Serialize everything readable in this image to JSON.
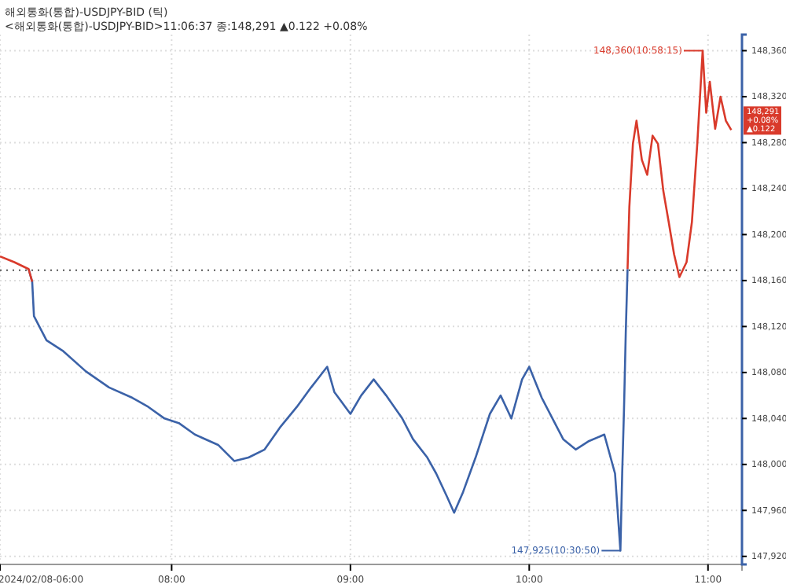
{
  "chart_data": {
    "type": "line",
    "title": "해외통화(통합)-USDJPY-BID (틱)",
    "subtitle": "<해외통화(통합)-USDJPY-BID>11:06:37 종:148,291 ▲0.122 +0.08%",
    "xlim": [
      7.04,
      11.19
    ],
    "xticks": [
      {
        "value": 7.04,
        "label": "2024/02/08-06:00"
      },
      {
        "value": 8,
        "label": "08:00"
      },
      {
        "value": 9,
        "label": "09:00"
      },
      {
        "value": 10,
        "label": "10:00"
      },
      {
        "value": 11,
        "label": "11:00"
      }
    ],
    "ylim": [
      147913,
      148374
    ],
    "yticks": [
      {
        "value": 147920,
        "label": "147,920"
      },
      {
        "value": 147960,
        "label": "147,960"
      },
      {
        "value": 148000,
        "label": "148,000"
      },
      {
        "value": 148040,
        "label": "148,040"
      },
      {
        "value": 148080,
        "label": "148,080"
      },
      {
        "value": 148120,
        "label": "148,120"
      },
      {
        "value": 148160,
        "label": "148,160"
      },
      {
        "value": 148200,
        "label": "148,200"
      },
      {
        "value": 148240,
        "label": "148,240"
      },
      {
        "value": 148280,
        "label": "148,280"
      },
      {
        "value": 148320,
        "label": "148,320"
      },
      {
        "value": 148360,
        "label": "148,360"
      }
    ],
    "grid": true,
    "line_style": "solid",
    "series": [
      {
        "color": "#3b62a8",
        "x": [
          7.2,
          7.22,
          7.23,
          7.3,
          7.39,
          7.52,
          7.65,
          7.78,
          7.87,
          7.96,
          8.04,
          8.13,
          8.26,
          8.35,
          8.43,
          8.52,
          8.61,
          8.7,
          8.78,
          8.83,
          8.87,
          8.91,
          9.0,
          9.06,
          9.13,
          9.2,
          9.29,
          9.35,
          9.43,
          9.48,
          9.54,
          9.58,
          9.63,
          9.7,
          9.78,
          9.84,
          9.9,
          9.96,
          10.0,
          10.07,
          10.13,
          10.19,
          10.26,
          10.33,
          10.42,
          10.48,
          10.51,
          10.52,
          10.53,
          10.54,
          10.55
        ],
        "values": [
          148170,
          148159,
          148129,
          148108,
          148099,
          148081,
          148067,
          148058,
          148050,
          148040,
          148036,
          148026,
          148017,
          148003,
          148006,
          148013,
          148033,
          148050,
          148067,
          148077,
          148085,
          148063,
          148044,
          148060,
          148074,
          148060,
          148040,
          148022,
          148006,
          147992,
          147972,
          147958,
          147976,
          148006,
          148044,
          148060,
          148040,
          148074,
          148085,
          148058,
          148040,
          148022,
          148013,
          148020,
          148026,
          147992,
          147925,
          147992,
          148047,
          148115,
          148170
        ]
      },
      {
        "color": "#d93a2b",
        "x": [
          7.04,
          7.12,
          7.2,
          7.22,
          9.0,
          10.55,
          10.56,
          10.58,
          10.6,
          10.63,
          10.66,
          10.69,
          10.72,
          10.75,
          10.78,
          10.81,
          10.84,
          10.88,
          10.91,
          10.94,
          10.97,
          10.99,
          11.01,
          11.04,
          11.07,
          11.1,
          11.13
        ],
        "values": [
          148181,
          148176,
          148170,
          148159,
          null,
          148170,
          148224,
          148279,
          148299,
          148265,
          148252,
          148286,
          148279,
          148238,
          148211,
          148183,
          148163,
          148176,
          148211,
          148279,
          148360,
          148306,
          148333,
          148292,
          148320,
          148299,
          148291
        ]
      }
    ],
    "ref_lines": [
      {
        "axis": "y",
        "value": 148169,
        "color": "#555555",
        "line_style": "dotted"
      }
    ],
    "annotations": [
      {
        "text": "148,360(10:58:15)",
        "x": 10.97,
        "y": 148360
      },
      {
        "text": "147,925(10:30:50)",
        "x": 10.51,
        "y": 147925
      },
      {
        "text": "148,291 +0.08% ▲0.122",
        "x": 11.13,
        "y": 148291
      }
    ]
  }
}
